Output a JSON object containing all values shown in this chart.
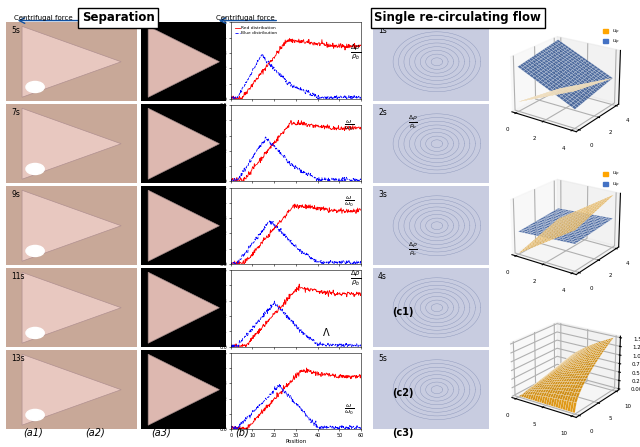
{
  "title_left": "Separation",
  "title_right": "Single re-circulating flow",
  "labels_a1": [
    "5s",
    "7s",
    "9s",
    "11s",
    "13s"
  ],
  "labels_b": [
    "1s",
    "2s",
    "3s",
    "4s",
    "5s"
  ],
  "arrow_label": "Centrifugal force",
  "panel_labels": [
    "(a1)",
    "(a2)",
    "(a3)",
    "(b)",
    "(c1)",
    "(c2)",
    "(c3)"
  ],
  "orange_color": "#FFA500",
  "blue_color": "#4472C4",
  "bg_color": "#FFFFFF",
  "red_line_color": "#FF0000",
  "dashed_blue_color": "#0000FF",
  "photo_bg": "#c8a898",
  "triangle_photo_face": "#e8c8c0",
  "triangle_black_face": "#ddb8b0",
  "black_bg": "#000000",
  "circle_bg": "#c8cce0"
}
